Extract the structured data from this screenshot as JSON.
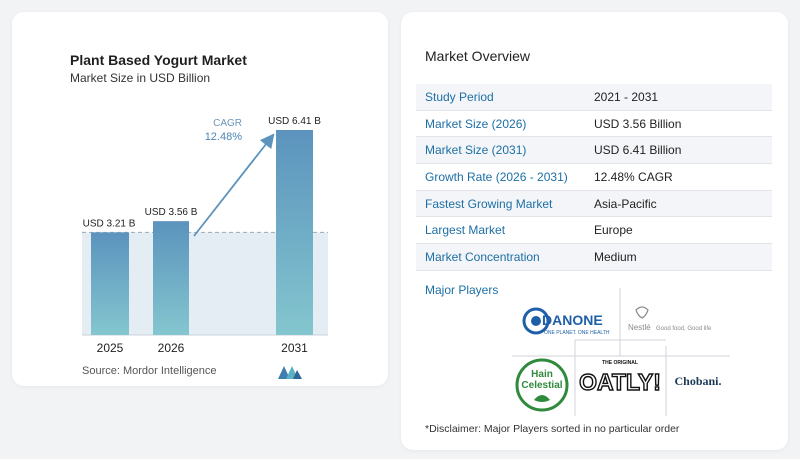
{
  "chart_data": {
    "type": "bar",
    "title": "Plant Based Yogurt Market",
    "subtitle": "Market Size in USD Billion",
    "categories": [
      "2025",
      "2026",
      "2031"
    ],
    "values": [
      3.21,
      3.56,
      6.41
    ],
    "data_labels": [
      "USD 3.21 B",
      "USD 3.56 B",
      "USD 6.41 B"
    ],
    "ylim": [
      0,
      6.41
    ],
    "reference_line_value": 3.21,
    "annotation": {
      "label": "CAGR",
      "value": "12.48%"
    },
    "colors": {
      "bar_top": "#5b93bd",
      "bar_bottom": "#84c6cf",
      "band": "#e4edf4",
      "arrow": "#5b93bd",
      "ref_line": "#9aaab8"
    }
  },
  "source": "Source: Mordor Intelligence",
  "overview": {
    "title": "Market Overview",
    "rows": [
      {
        "label": "Study Period",
        "value": "2021 - 2031"
      },
      {
        "label": "Market Size (2026)",
        "value": "USD 3.56 Billion"
      },
      {
        "label": "Market Size (2031)",
        "value": "USD 6.41 Billion"
      },
      {
        "label": "Growth Rate (2026 - 2031)",
        "value": "12.48% CAGR"
      },
      {
        "label": "Fastest Growing Market",
        "value": "Asia-Pacific"
      },
      {
        "label": "Largest Market",
        "value": "Europe"
      },
      {
        "label": "Market Concentration",
        "value": "Medium"
      }
    ]
  },
  "players": {
    "title": "Major Players",
    "logos": {
      "danone": {
        "name": "DANONE",
        "tagline": "ONE PLANET. ONE HEALTH"
      },
      "nestle": {
        "name": "Nestlé",
        "tagline": "Good food, Good life"
      },
      "hain": {
        "line1": "Hain",
        "line2": "Celestial"
      },
      "oatly": {
        "top": "THE ORIGINAL",
        "name": "OATLY!"
      },
      "chobani": {
        "name": "Chobani."
      }
    }
  },
  "disclaimer": "*Disclaimer: Major Players sorted in no particular order"
}
